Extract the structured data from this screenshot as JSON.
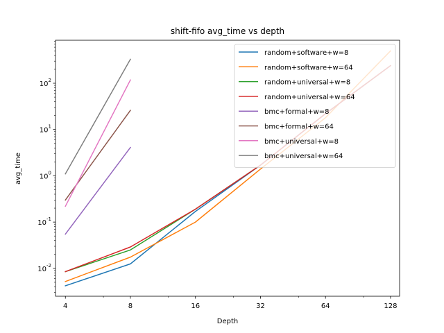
{
  "chart_data": {
    "type": "line",
    "title": "shift-fifo avg_time vs depth",
    "xlabel": "Depth",
    "ylabel": "avg_time",
    "xscale": "log2",
    "yscale": "log10",
    "xlim": [
      3.6,
      141
    ],
    "ylim": [
      0.0025,
      850
    ],
    "x_ticks": [
      4,
      8,
      16,
      32,
      64,
      128
    ],
    "x_tick_labels": [
      "4",
      "8",
      "16",
      "32",
      "64",
      "128"
    ],
    "y_ticks": [
      0.01,
      0.1,
      1,
      10,
      100
    ],
    "y_tick_labels": [
      "10",
      "10",
      "10",
      "10",
      "10"
    ],
    "y_tick_exponents": [
      "-2",
      "-1",
      "0",
      "1",
      "2"
    ],
    "grid": false,
    "legend_position": "top-right",
    "series": [
      {
        "name": "random+software+w=8",
        "color": "#1f77b4",
        "x": [
          4,
          8,
          16,
          32,
          64,
          128
        ],
        "values": [
          0.0042,
          0.0125,
          0.17,
          1.7,
          22,
          240
        ]
      },
      {
        "name": "random+software+w=64",
        "color": "#ff7f0e",
        "x": [
          4,
          8,
          16,
          32,
          64,
          128
        ],
        "values": [
          0.0052,
          0.0175,
          0.1,
          1.4,
          18,
          500
        ]
      },
      {
        "name": "random+universal+w=8",
        "color": "#2ca02c",
        "x": [
          4,
          8,
          16,
          32,
          64,
          128
        ],
        "values": [
          0.0085,
          0.025,
          0.19,
          1.7,
          22,
          240
        ]
      },
      {
        "name": "random+universal+w=64",
        "color": "#d62728",
        "x": [
          4,
          8,
          16,
          32,
          64,
          128
        ],
        "values": [
          0.0085,
          0.029,
          0.19,
          1.7,
          22,
          240
        ]
      },
      {
        "name": "bmc+formal+w=8",
        "color": "#9467bd",
        "x": [
          4,
          8
        ],
        "values": [
          0.055,
          4.1
        ]
      },
      {
        "name": "bmc+formal+w=64",
        "color": "#8c564b",
        "x": [
          4,
          8
        ],
        "values": [
          0.3,
          26
        ]
      },
      {
        "name": "bmc+universal+w=8",
        "color": "#e377c2",
        "x": [
          4,
          8
        ],
        "values": [
          0.22,
          118
        ]
      },
      {
        "name": "bmc+universal+w=64",
        "color": "#7f7f7f",
        "x": [
          4,
          8
        ],
        "values": [
          1.1,
          330
        ]
      }
    ]
  }
}
